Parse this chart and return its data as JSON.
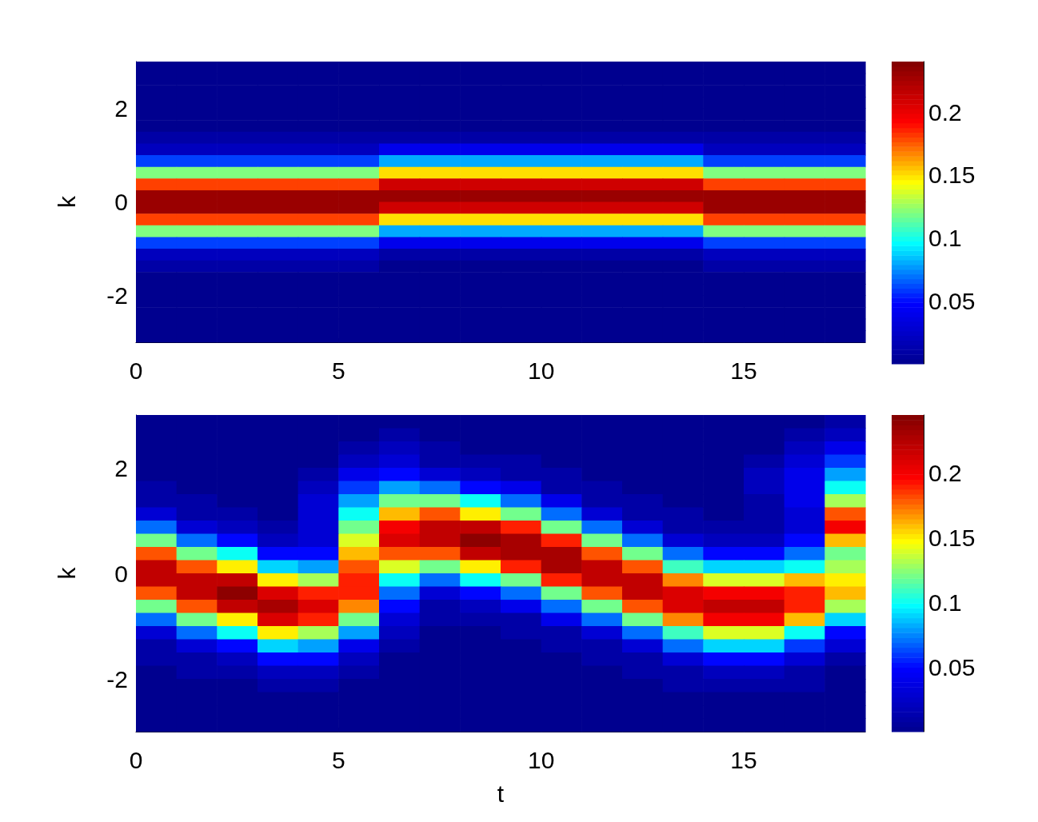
{
  "chart_data": [
    {
      "type": "heatmap",
      "ylabel": "k",
      "xlim": [
        0,
        18
      ],
      "xticks": [
        0,
        5,
        10,
        15
      ],
      "ylim": [
        -3,
        3
      ],
      "yticks": [
        -2,
        0,
        2
      ],
      "clim": [
        0,
        0.24
      ],
      "cticks": [
        0.05,
        0.1,
        0.15,
        0.2
      ],
      "x": [
        0.5,
        1.5,
        2.5,
        3.5,
        4.5,
        5.5,
        6.5,
        7.5,
        8.5,
        9.5,
        10.5,
        11.5,
        12.5,
        13.5,
        14.5,
        15.5,
        16.5,
        17.5
      ],
      "cells": [
        [
          0,
          0,
          0,
          0,
          0,
          0,
          0,
          0,
          0,
          0,
          0,
          0,
          0,
          0,
          0,
          0,
          0,
          0
        ],
        [
          0,
          0,
          0,
          0,
          0,
          0,
          0,
          0,
          0,
          0,
          0,
          0,
          0,
          0,
          0,
          0,
          0,
          0
        ],
        [
          0,
          0,
          0,
          0,
          0,
          0,
          0,
          0,
          0,
          0,
          0,
          0,
          0,
          0,
          0,
          0,
          0,
          0
        ],
        [
          0,
          0,
          0,
          0,
          0,
          0,
          0,
          0,
          0,
          0,
          0,
          0,
          0,
          0,
          0,
          0,
          0,
          0
        ],
        [
          0,
          0,
          0,
          0,
          0,
          0,
          0,
          0,
          0,
          0,
          0,
          0,
          0,
          0,
          0,
          0,
          0,
          0
        ],
        [
          0,
          0,
          0,
          0,
          0,
          0,
          0,
          0,
          0,
          0,
          0,
          0,
          0,
          0,
          0,
          0,
          0,
          0
        ],
        [
          0.01,
          0.01,
          0.01,
          0.01,
          0.01,
          0.01,
          0.01,
          0.01,
          0.01,
          0.01,
          0.01,
          0.01,
          0.01,
          0.01,
          0.01,
          0.01,
          0.01,
          0.01
        ],
        [
          0.02,
          0.02,
          0.02,
          0.02,
          0.02,
          0.02,
          0.04,
          0.04,
          0.04,
          0.04,
          0.04,
          0.04,
          0.04,
          0.04,
          0.02,
          0.02,
          0.02,
          0.02
        ],
        [
          0.06,
          0.06,
          0.06,
          0.06,
          0.06,
          0.06,
          0.08,
          0.08,
          0.08,
          0.08,
          0.08,
          0.08,
          0.08,
          0.08,
          0.06,
          0.06,
          0.06,
          0.06
        ],
        [
          0.12,
          0.12,
          0.12,
          0.12,
          0.12,
          0.12,
          0.15,
          0.15,
          0.15,
          0.15,
          0.15,
          0.15,
          0.15,
          0.15,
          0.12,
          0.12,
          0.12,
          0.12
        ],
        [
          0.18,
          0.18,
          0.18,
          0.18,
          0.18,
          0.18,
          0.21,
          0.21,
          0.21,
          0.21,
          0.21,
          0.21,
          0.21,
          0.21,
          0.18,
          0.18,
          0.18,
          0.18
        ],
        [
          0.23,
          0.23,
          0.23,
          0.23,
          0.23,
          0.23,
          0.23,
          0.23,
          0.23,
          0.23,
          0.23,
          0.23,
          0.23,
          0.23,
          0.23,
          0.23,
          0.23,
          0.23
        ],
        [
          0.23,
          0.23,
          0.23,
          0.23,
          0.23,
          0.23,
          0.21,
          0.21,
          0.21,
          0.21,
          0.21,
          0.21,
          0.21,
          0.21,
          0.23,
          0.23,
          0.23,
          0.23
        ],
        [
          0.18,
          0.18,
          0.18,
          0.18,
          0.18,
          0.18,
          0.15,
          0.15,
          0.15,
          0.15,
          0.15,
          0.15,
          0.15,
          0.15,
          0.18,
          0.18,
          0.18,
          0.18
        ],
        [
          0.12,
          0.12,
          0.12,
          0.12,
          0.12,
          0.12,
          0.08,
          0.08,
          0.08,
          0.08,
          0.08,
          0.08,
          0.08,
          0.08,
          0.12,
          0.12,
          0.12,
          0.12
        ],
        [
          0.06,
          0.06,
          0.06,
          0.06,
          0.06,
          0.06,
          0.04,
          0.04,
          0.04,
          0.04,
          0.04,
          0.04,
          0.04,
          0.04,
          0.06,
          0.06,
          0.06,
          0.06
        ],
        [
          0.02,
          0.02,
          0.02,
          0.02,
          0.02,
          0.02,
          0.01,
          0.01,
          0.01,
          0.01,
          0.01,
          0.01,
          0.01,
          0.01,
          0.02,
          0.02,
          0.02,
          0.02
        ],
        [
          0.01,
          0.01,
          0.01,
          0.01,
          0.01,
          0.01,
          0,
          0,
          0,
          0,
          0,
          0,
          0,
          0,
          0.01,
          0.01,
          0.01,
          0.01
        ],
        [
          0,
          0,
          0,
          0,
          0,
          0,
          0,
          0,
          0,
          0,
          0,
          0,
          0,
          0,
          0,
          0,
          0,
          0
        ],
        [
          0,
          0,
          0,
          0,
          0,
          0,
          0,
          0,
          0,
          0,
          0,
          0,
          0,
          0,
          0,
          0,
          0,
          0
        ],
        [
          0,
          0,
          0,
          0,
          0,
          0,
          0,
          0,
          0,
          0,
          0,
          0,
          0,
          0,
          0,
          0,
          0,
          0
        ],
        [
          0,
          0,
          0,
          0,
          0,
          0,
          0,
          0,
          0,
          0,
          0,
          0,
          0,
          0,
          0,
          0,
          0,
          0
        ],
        [
          0,
          0,
          0,
          0,
          0,
          0,
          0,
          0,
          0,
          0,
          0,
          0,
          0,
          0,
          0,
          0,
          0,
          0
        ],
        [
          0,
          0,
          0,
          0,
          0,
          0,
          0,
          0,
          0,
          0,
          0,
          0,
          0,
          0,
          0,
          0,
          0,
          0
        ]
      ]
    },
    {
      "type": "heatmap",
      "xlabel": "t",
      "ylabel": "k",
      "xlim": [
        0,
        18
      ],
      "xticks": [
        0,
        5,
        10,
        15
      ],
      "ylim": [
        -3,
        3
      ],
      "yticks": [
        -2,
        0,
        2
      ],
      "clim": [
        0,
        0.245
      ],
      "cticks": [
        0.05,
        0.1,
        0.15,
        0.2
      ],
      "x": [
        0.5,
        1.5,
        2.5,
        3.5,
        4.5,
        5.5,
        6.5,
        7.5,
        8.5,
        9.5,
        10.5,
        11.5,
        12.5,
        13.5,
        14.5,
        15.5,
        16.5,
        17.5
      ],
      "cells": [
        [
          0,
          0,
          0,
          0,
          0,
          0,
          0,
          0,
          0,
          0,
          0,
          0,
          0,
          0,
          0,
          0,
          0,
          0.01
        ],
        [
          0,
          0,
          0,
          0,
          0,
          0,
          0.01,
          0,
          0,
          0,
          0,
          0,
          0,
          0,
          0,
          0,
          0.01,
          0.02
        ],
        [
          0,
          0,
          0,
          0,
          0,
          0.01,
          0.02,
          0.01,
          0,
          0,
          0,
          0,
          0,
          0,
          0,
          0,
          0.02,
          0.04
        ],
        [
          0,
          0,
          0,
          0,
          0,
          0.02,
          0.03,
          0.01,
          0.01,
          0.01,
          0,
          0,
          0,
          0,
          0,
          0.01,
          0.03,
          0.06
        ],
        [
          0,
          0,
          0,
          0,
          0.01,
          0.04,
          0.05,
          0.03,
          0.02,
          0.01,
          0.01,
          0,
          0,
          0,
          0,
          0.02,
          0.04,
          0.08
        ],
        [
          0.01,
          0,
          0,
          0,
          0.02,
          0.06,
          0.08,
          0.07,
          0.05,
          0.04,
          0.01,
          0.01,
          0,
          0,
          0,
          0.02,
          0.04,
          0.1
        ],
        [
          0.01,
          0.01,
          0,
          0,
          0.03,
          0.08,
          0.12,
          0.12,
          0.1,
          0.07,
          0.04,
          0.01,
          0.01,
          0,
          0,
          0.01,
          0.04,
          0.13
        ],
        [
          0.03,
          0.01,
          0.01,
          0,
          0.03,
          0.1,
          0.16,
          0.18,
          0.15,
          0.12,
          0.07,
          0.03,
          0.01,
          0.01,
          0,
          0.01,
          0.03,
          0.18
        ],
        [
          0.07,
          0.03,
          0.02,
          0.01,
          0.03,
          0.12,
          0.2,
          0.22,
          0.22,
          0.19,
          0.12,
          0.07,
          0.03,
          0.01,
          0.01,
          0.01,
          0.03,
          0.2
        ],
        [
          0.12,
          0.07,
          0.05,
          0.02,
          0.03,
          0.14,
          0.21,
          0.22,
          0.24,
          0.23,
          0.19,
          0.12,
          0.07,
          0.03,
          0.02,
          0.02,
          0.05,
          0.16
        ],
        [
          0.18,
          0.12,
          0.1,
          0.05,
          0.05,
          0.16,
          0.18,
          0.18,
          0.22,
          0.23,
          0.23,
          0.18,
          0.12,
          0.07,
          0.05,
          0.05,
          0.07,
          0.12
        ],
        [
          0.22,
          0.18,
          0.15,
          0.09,
          0.08,
          0.18,
          0.14,
          0.12,
          0.15,
          0.19,
          0.23,
          0.22,
          0.18,
          0.11,
          0.09,
          0.09,
          0.1,
          0.13
        ],
        [
          0.22,
          0.22,
          0.22,
          0.15,
          0.13,
          0.19,
          0.1,
          0.07,
          0.1,
          0.12,
          0.19,
          0.22,
          0.22,
          0.17,
          0.14,
          0.14,
          0.16,
          0.15
        ],
        [
          0.18,
          0.22,
          0.24,
          0.21,
          0.19,
          0.19,
          0.07,
          0.03,
          0.05,
          0.07,
          0.12,
          0.18,
          0.22,
          0.21,
          0.2,
          0.2,
          0.19,
          0.16
        ],
        [
          0.12,
          0.18,
          0.22,
          0.23,
          0.21,
          0.17,
          0.05,
          0.01,
          0.02,
          0.04,
          0.07,
          0.12,
          0.18,
          0.21,
          0.22,
          0.22,
          0.19,
          0.13
        ],
        [
          0.07,
          0.12,
          0.15,
          0.21,
          0.19,
          0.12,
          0.03,
          0.01,
          0.01,
          0.01,
          0.04,
          0.07,
          0.12,
          0.17,
          0.2,
          0.2,
          0.16,
          0.09
        ],
        [
          0.03,
          0.07,
          0.1,
          0.15,
          0.13,
          0.08,
          0.02,
          0,
          0,
          0.01,
          0.01,
          0.03,
          0.07,
          0.11,
          0.14,
          0.14,
          0.1,
          0.05
        ],
        [
          0.01,
          0.03,
          0.05,
          0.09,
          0.08,
          0.04,
          0.01,
          0,
          0,
          0,
          0.01,
          0.01,
          0.03,
          0.07,
          0.09,
          0.09,
          0.06,
          0.03
        ],
        [
          0.01,
          0.01,
          0.02,
          0.05,
          0.05,
          0.02,
          0,
          0,
          0,
          0,
          0,
          0.01,
          0.01,
          0.03,
          0.05,
          0.05,
          0.03,
          0.01
        ],
        [
          0,
          0.01,
          0.01,
          0.02,
          0.02,
          0.01,
          0,
          0,
          0,
          0,
          0,
          0,
          0.01,
          0.01,
          0.02,
          0.02,
          0.01,
          0
        ],
        [
          0,
          0,
          0,
          0.01,
          0.01,
          0,
          0,
          0,
          0,
          0,
          0,
          0,
          0,
          0.01,
          0.01,
          0.01,
          0.01,
          0
        ],
        [
          0,
          0,
          0,
          0,
          0,
          0,
          0,
          0,
          0,
          0,
          0,
          0,
          0,
          0,
          0,
          0,
          0,
          0
        ],
        [
          0,
          0,
          0,
          0,
          0,
          0,
          0,
          0,
          0,
          0,
          0,
          0,
          0,
          0,
          0,
          0,
          0,
          0
        ],
        [
          0,
          0,
          0,
          0,
          0,
          0,
          0,
          0,
          0,
          0,
          0,
          0,
          0,
          0,
          0,
          0,
          0,
          0
        ]
      ]
    }
  ]
}
